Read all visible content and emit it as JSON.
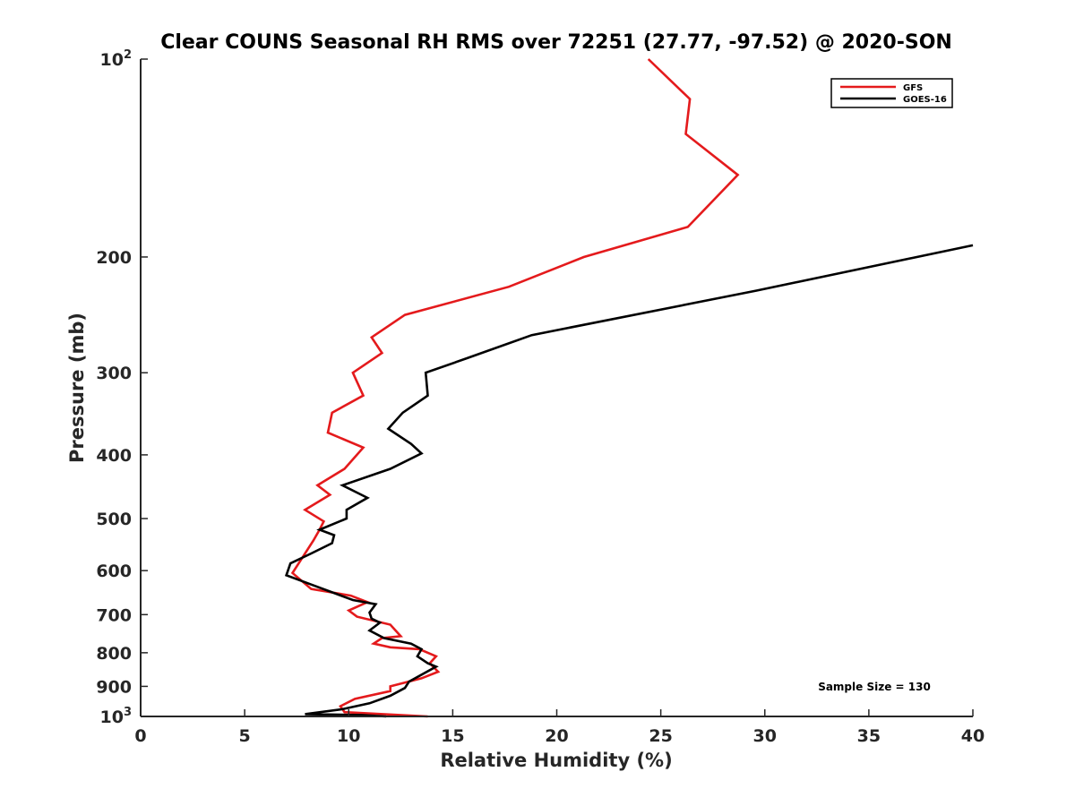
{
  "chart_data": {
    "type": "line",
    "title": "Clear COUNS Seasonal RH RMS over 72251 (27.77, -97.52) @ 2020-SON",
    "xlabel": "Relative Humidity (%)",
    "ylabel": "Pressure (mb)",
    "xlim": [
      0,
      40
    ],
    "ylim": [
      100,
      1000
    ],
    "yscale": "log",
    "y_reversed": true,
    "grid": false,
    "x_ticks": [
      {
        "value": 0,
        "label": "0"
      },
      {
        "value": 5,
        "label": "5"
      },
      {
        "value": 10,
        "label": "10"
      },
      {
        "value": 15,
        "label": "15"
      },
      {
        "value": 20,
        "label": "20"
      },
      {
        "value": 25,
        "label": "25"
      },
      {
        "value": 30,
        "label": "30"
      },
      {
        "value": 35,
        "label": "35"
      },
      {
        "value": 40,
        "label": "40"
      }
    ],
    "y_ticks": [
      {
        "value": 100,
        "label": "10",
        "sup": "2"
      },
      {
        "value": 200,
        "label": "200"
      },
      {
        "value": 300,
        "label": "300"
      },
      {
        "value": 400,
        "label": "400"
      },
      {
        "value": 500,
        "label": "500"
      },
      {
        "value": 600,
        "label": "600"
      },
      {
        "value": 700,
        "label": "700"
      },
      {
        "value": 800,
        "label": "800"
      },
      {
        "value": 900,
        "label": "900"
      },
      {
        "value": 1000,
        "label": "10",
        "sup": "3"
      }
    ],
    "legend": {
      "placement": "top-right",
      "entries": [
        {
          "name": "GFS",
          "color": "#e41a1c"
        },
        {
          "name": "GOES-16",
          "color": "#000000"
        }
      ]
    },
    "annotations": [
      {
        "text": "Sample Size = 130"
      }
    ],
    "series": [
      {
        "name": "GFS",
        "color": "#e41a1c",
        "x": [
          24.4,
          26.4,
          26.2,
          28.7,
          26.3,
          21.3,
          17.7,
          12.7,
          11.1,
          11.6,
          10.2,
          10.7,
          9.2,
          9.0,
          10.7,
          9.8,
          8.5,
          9.1,
          7.9,
          8.8,
          8.6,
          8.3,
          7.3,
          8.2,
          10.1,
          10.9,
          10.0,
          10.4,
          12.0,
          12.5,
          11.6,
          11.2,
          12.0,
          13.4,
          14.2,
          13.9,
          14.3,
          13.5,
          12.0,
          12.0,
          10.3,
          9.6,
          9.8,
          13.8
        ],
        "y": [
          100,
          115,
          130,
          150,
          180,
          200,
          222,
          245,
          265,
          280,
          300,
          325,
          345,
          370,
          390,
          420,
          445,
          460,
          485,
          505,
          520,
          540,
          605,
          640,
          655,
          670,
          690,
          705,
          725,
          755,
          760,
          775,
          785,
          790,
          810,
          830,
          855,
          875,
          900,
          915,
          940,
          965,
          985,
          1000
        ]
      },
      {
        "name": "GOES-16",
        "color": "#000000",
        "x": [
          40,
          29.6,
          18.8,
          15.7,
          13.7,
          13.8,
          12.6,
          11.9,
          13.0,
          13.5,
          12.0,
          9.7,
          10.9,
          9.9,
          9.9,
          8.6,
          9.3,
          9.2,
          8.2,
          7.2,
          7.0,
          8.2,
          10.2,
          11.3,
          11.0,
          11.1,
          11.5,
          11.0,
          11.7,
          13.0,
          13.5,
          13.3,
          13.8,
          14.2,
          12.9,
          12.7,
          12.0,
          11.0,
          9.7,
          7.9,
          10.6,
          11.8
        ],
        "y": [
          192,
          225,
          263,
          285,
          300,
          325,
          345,
          365,
          385,
          398,
          420,
          445,
          465,
          485,
          500,
          520,
          530,
          545,
          565,
          585,
          610,
          630,
          665,
          675,
          695,
          710,
          720,
          740,
          760,
          775,
          790,
          810,
          830,
          840,
          885,
          905,
          930,
          955,
          975,
          992,
          995,
          1000
        ]
      }
    ]
  }
}
